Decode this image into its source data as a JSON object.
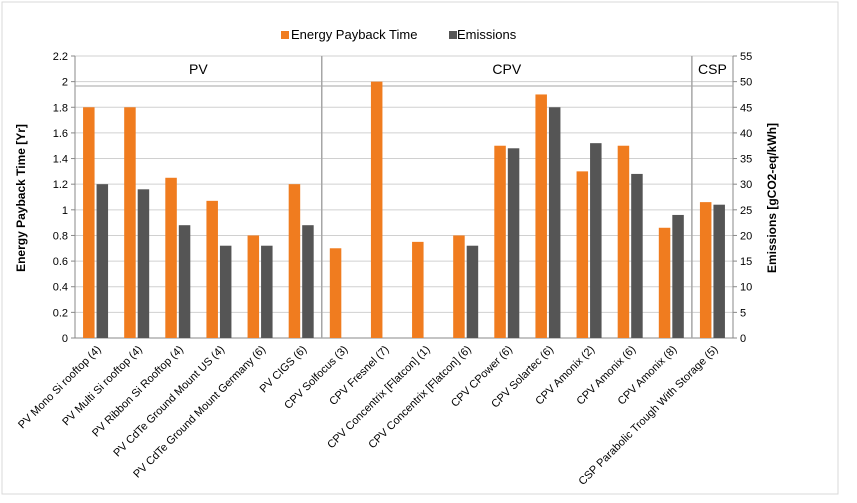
{
  "chart_data": {
    "type": "bar",
    "title": "",
    "legend_position": "top",
    "grid": true,
    "categories": [
      "PV Mono Si rooftop (4)",
      "PV Multi Si rooftop (4)",
      "PV Ribbon Si Rooftop (4)",
      "PV CdTe Ground Mount US (4)",
      "PV CdTe Ground Mount Germany (6)",
      "PV CIGS (6)",
      "CPV Solfocus (3)",
      "CPV Fresnel (7)",
      "CPV Concentrix [Flatcon] (1)",
      "CPV Concentrix [Flatcon] (6)",
      "CPV CPower (6)",
      "CPV Solartec (6)",
      "CPV Amonix (2)",
      "CPV Amonix (6)",
      "CPV Amonix (8)",
      "CSP Parabolic Trough With Storage (5)"
    ],
    "series": [
      {
        "name": "Energy Payback Time",
        "axis": "left",
        "color": "#f07c1f",
        "values": [
          1.8,
          1.8,
          1.25,
          1.07,
          0.8,
          1.2,
          0.7,
          2.0,
          0.75,
          0.8,
          1.5,
          1.9,
          1.3,
          1.5,
          0.86,
          1.06
        ]
      },
      {
        "name": "Emissions",
        "axis": "right",
        "color": "#555555",
        "values": [
          30,
          29,
          22,
          18,
          18,
          22,
          null,
          null,
          null,
          18,
          37,
          45,
          38,
          32,
          24,
          26
        ]
      }
    ],
    "ylabel": "Energy Payback Time [Yr]",
    "ylim": [
      0,
      2.2
    ],
    "yticks": [
      "0",
      "0.2",
      "0.4",
      "0.6",
      "0.8",
      "1",
      "1.2",
      "1.4",
      "1.6",
      "1.8",
      "2",
      "2.2"
    ],
    "y2label": "Emissions [gCO2-eq/kWh]",
    "y2lim": [
      0,
      55
    ],
    "y2ticks": [
      "0",
      "5",
      "10",
      "15",
      "20",
      "25",
      "30",
      "35",
      "40",
      "45",
      "50",
      "55"
    ],
    "groups": [
      {
        "label": "PV",
        "start": 0,
        "end": 5
      },
      {
        "label": "CPV",
        "start": 6,
        "end": 14
      },
      {
        "label": "CSP",
        "start": 15,
        "end": 15
      }
    ]
  }
}
